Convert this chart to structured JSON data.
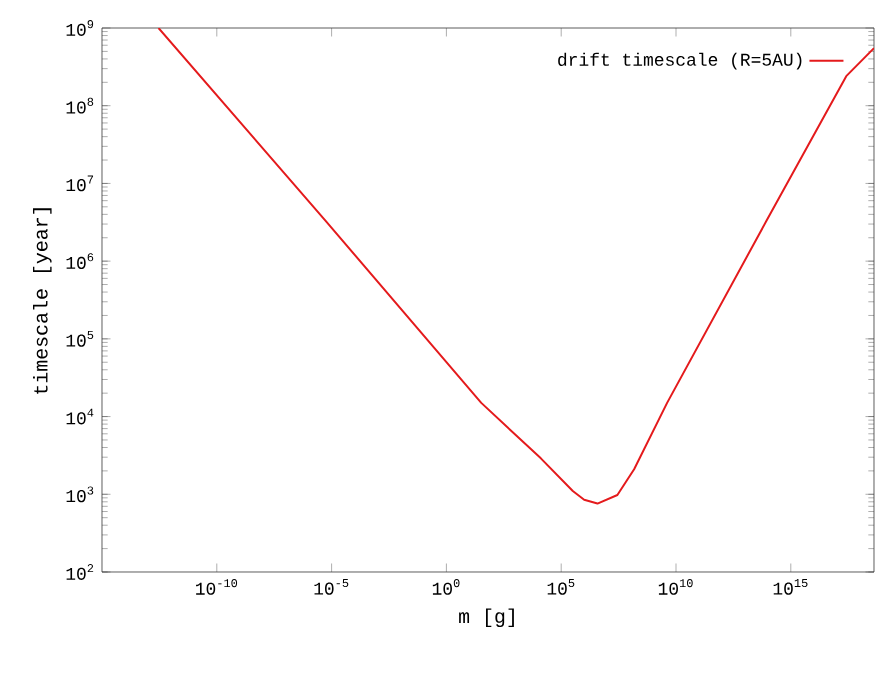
{
  "chart_data": {
    "type": "line",
    "xlabel": "m [g]",
    "ylabel": "timescale [year]",
    "log": "xy",
    "legend": "top right",
    "grid": false,
    "marker": "none",
    "line_style": "solid",
    "xlim": [
      1e-15,
      4.2e+18
    ],
    "ylim": [
      100,
      1000000000
    ],
    "xticks": [
      {
        "value": 1e-10,
        "label": "10$^{-10}$"
      },
      {
        "value": 1e-05,
        "label": "10$^{-5}$"
      },
      {
        "value": 1,
        "label": "10$^{0}$"
      },
      {
        "value": 100000,
        "label": "10$^{5}$"
      },
      {
        "value": 10000000000,
        "label": "10$^{10}$"
      },
      {
        "value": 1000000000000000.0,
        "label": "10$^{15}$"
      }
    ],
    "yticks": [
      {
        "value": 100,
        "label": "10$^{2}$"
      },
      {
        "value": 1000,
        "label": "10$^{3}$"
      },
      {
        "value": 10000,
        "label": "10$^{4}$"
      },
      {
        "value": 100000,
        "label": "10$^{5}$"
      },
      {
        "value": 1000000,
        "label": "10$^{6}$"
      },
      {
        "value": 10000000,
        "label": "10$^{7}$"
      },
      {
        "value": 100000000,
        "label": "10$^{8}$"
      },
      {
        "value": 1000000000,
        "label": "10$^{9}$"
      }
    ],
    "series": [
      {
        "name": "drift timescale (R=5AU)",
        "color": "#e41a1c",
        "x": [
          2.9e-13,
          5.5e-06,
          33,
          13000,
          320000,
          1000000,
          3800000,
          28000000,
          150000000,
          4100000000,
          87000000000000.0,
          2.6e+17,
          4.2e+18
        ],
        "values": [
          1000000000,
          3300000,
          15000,
          2900,
          1100,
          850,
          760,
          980,
          2100,
          15000,
          3300000,
          240000000,
          550000000
        ]
      }
    ]
  }
}
